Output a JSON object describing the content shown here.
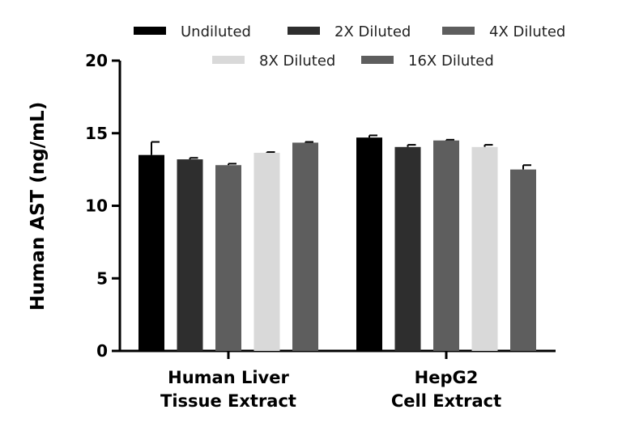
{
  "chart_data": {
    "type": "bar",
    "ylabel": "Human AST (ng/mL)",
    "xlabel": "",
    "ylim": [
      0,
      20
    ],
    "yticks": [
      0,
      5,
      10,
      15,
      20
    ],
    "grid": false,
    "legend_position": "top",
    "groups": [
      [
        "Human Liver",
        "Tissue Extract"
      ],
      [
        "HepG2",
        "Cell Extract"
      ]
    ],
    "series": [
      {
        "name": "Undiluted",
        "color": "#000000",
        "values": [
          13.5,
          14.7
        ],
        "errors": [
          0.9,
          0.15
        ]
      },
      {
        "name": "2X Diluted",
        "color": "#2e2e2e",
        "values": [
          13.2,
          14.05
        ],
        "errors": [
          0.1,
          0.15
        ]
      },
      {
        "name": "4X Diluted",
        "color": "#5e5e5e",
        "values": [
          12.8,
          14.5
        ],
        "errors": [
          0.1,
          0.05
        ]
      },
      {
        "name": "8X Diluted",
        "color": "#d9d9d9",
        "values": [
          13.65,
          14.05
        ],
        "errors": [
          0.05,
          0.15
        ]
      },
      {
        "name": "16X Diluted",
        "color": "#5e5e5e",
        "values": [
          14.35,
          12.5
        ],
        "errors": [
          0.05,
          0.3
        ]
      }
    ]
  }
}
